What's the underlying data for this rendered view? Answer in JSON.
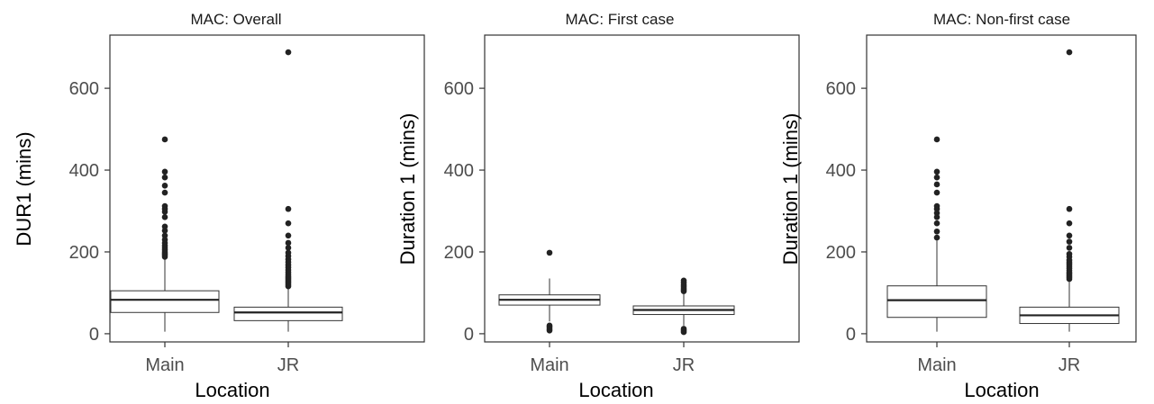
{
  "chart_data": [
    {
      "type": "box",
      "title": "MAC: Overall",
      "xlabel": "Location",
      "ylabel": "DUR1 (mins)",
      "ylim": [
        -20,
        730
      ],
      "yticks": [
        0,
        200,
        400,
        600
      ],
      "categories": [
        "Main",
        "JR"
      ],
      "boxes": [
        {
          "category": "Main",
          "lower_whisker": 5,
          "q1": 52,
          "median": 83,
          "q3": 105,
          "upper_whisker": 182,
          "outliers": [
            188,
            192,
            196,
            200,
            205,
            210,
            215,
            222,
            230,
            240,
            252,
            262,
            285,
            298,
            305,
            312,
            345,
            362,
            382,
            396,
            475
          ]
        },
        {
          "category": "JR",
          "lower_whisker": 5,
          "q1": 32,
          "median": 52,
          "q3": 65,
          "upper_whisker": 112,
          "outliers": [
            116,
            120,
            124,
            128,
            132,
            136,
            140,
            145,
            150,
            156,
            162,
            168,
            175,
            182,
            190,
            198,
            210,
            222,
            240,
            270,
            305,
            688
          ]
        }
      ]
    },
    {
      "type": "box",
      "title": "MAC: First case",
      "xlabel": "Location",
      "ylabel": "Duration 1 (mins)",
      "ylim": [
        -20,
        730
      ],
      "yticks": [
        0,
        200,
        400,
        600
      ],
      "categories": [
        "Main",
        "JR"
      ],
      "boxes": [
        {
          "category": "Main",
          "lower_whisker": 30,
          "q1": 70,
          "median": 83,
          "q3": 95,
          "upper_whisker": 135,
          "outliers": [
            8,
            12,
            16,
            20,
            198
          ]
        },
        {
          "category": "JR",
          "lower_whisker": 20,
          "q1": 47,
          "median": 58,
          "q3": 68,
          "upper_whisker": 100,
          "outliers": [
            4,
            8,
            12,
            104,
            108,
            112,
            116,
            120,
            125,
            130
          ]
        }
      ]
    },
    {
      "type": "box",
      "title": "MAC: Non-first case",
      "xlabel": "Location",
      "ylabel": "Duration 1 (mins)",
      "ylim": [
        -20,
        730
      ],
      "yticks": [
        0,
        200,
        400,
        600
      ],
      "categories": [
        "Main",
        "JR"
      ],
      "boxes": [
        {
          "category": "Main",
          "lower_whisker": 5,
          "q1": 40,
          "median": 82,
          "q3": 117,
          "upper_whisker": 228,
          "outliers": [
            235,
            250,
            270,
            285,
            295,
            305,
            312,
            345,
            365,
            382,
            396,
            475
          ]
        },
        {
          "category": "JR",
          "lower_whisker": 5,
          "q1": 25,
          "median": 45,
          "q3": 65,
          "upper_whisker": 130,
          "outliers": [
            134,
            138,
            142,
            146,
            150,
            155,
            160,
            165,
            170,
            175,
            180,
            188,
            195,
            210,
            225,
            240,
            270,
            305,
            688
          ]
        }
      ]
    }
  ]
}
